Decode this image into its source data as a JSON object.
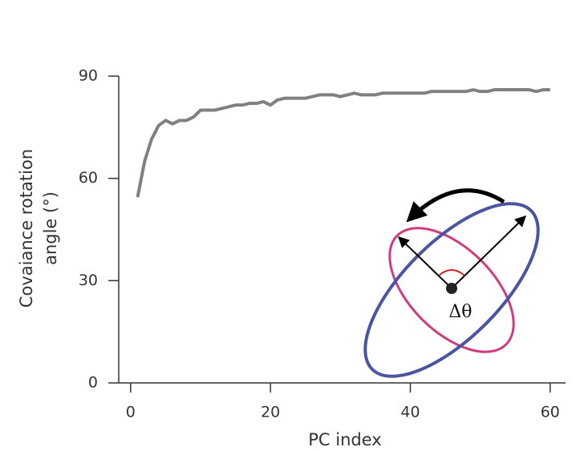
{
  "chart_data": {
    "type": "line",
    "ylabel": [
      "Covaiance rotation",
      "angle (°)"
    ],
    "xlabel": "PC index",
    "annotation": "Δθ",
    "x": [
      1,
      2,
      3,
      4,
      5,
      6,
      7,
      8,
      9,
      10,
      11,
      12,
      13,
      14,
      15,
      16,
      17,
      18,
      19,
      20,
      21,
      22,
      23,
      24,
      25,
      26,
      27,
      28,
      29,
      30,
      31,
      32,
      33,
      34,
      35,
      36,
      37,
      38,
      39,
      40,
      41,
      42,
      43,
      44,
      45,
      46,
      47,
      48,
      49,
      50,
      51,
      52,
      53,
      54,
      55,
      56,
      57,
      58,
      59,
      60
    ],
    "series": [
      {
        "color": "#808080",
        "values": [
          54.5,
          65,
          71.5,
          75.5,
          77,
          76,
          77,
          77,
          78,
          80,
          80,
          80,
          80.5,
          81,
          81.5,
          81.5,
          82,
          82,
          82.5,
          81.5,
          83,
          83.5,
          83.5,
          83.5,
          83.5,
          84,
          84.5,
          84.5,
          84.5,
          84,
          84.5,
          85,
          84.5,
          84.5,
          84.5,
          85,
          85,
          85,
          85,
          85,
          85,
          85,
          85.5,
          85.5,
          85.5,
          85.5,
          85.5,
          85.5,
          86,
          85.5,
          85.5,
          86,
          86,
          86,
          86,
          86,
          86,
          85.5,
          86,
          86
        ]
      }
    ],
    "xlim": [
      -1.7,
      62.2
    ],
    "ylim": [
      0,
      90
    ],
    "xticks": [
      0,
      20,
      40,
      60
    ],
    "yticks": [
      0,
      30,
      60,
      90
    ]
  }
}
